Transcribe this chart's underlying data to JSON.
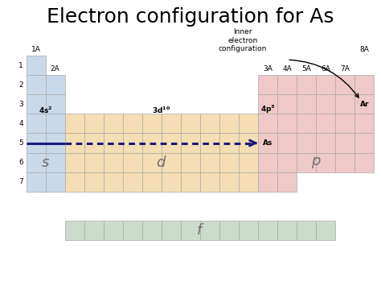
{
  "title": "Electron configuration for As",
  "title_fontsize": 18,
  "background_color": "#ffffff",
  "s_color": "#c9d9ea",
  "d_color": "#f5deb3",
  "p_color": "#f0c8c8",
  "f_color": "#ccdccc",
  "grid_edge_color": "#aaaaaa",
  "row_labels": [
    "1",
    "2",
    "3",
    "4",
    "5",
    "6",
    "7"
  ],
  "inner_text": "Inner\nelectron\nconfiguration",
  "arrow_color": "#1a1a7e",
  "arrow_color_black": "#111111"
}
